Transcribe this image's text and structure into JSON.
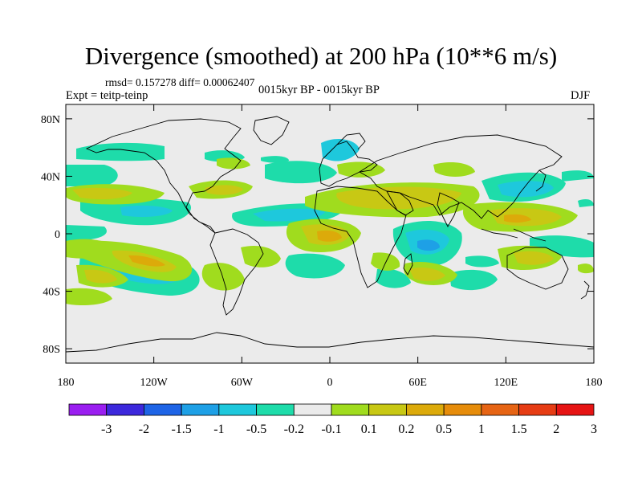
{
  "title": "Divergence (smoothed) at 200 hPa (10**6 m/s)",
  "stats_text": "rmsd= 0.157278 diff= 0.00062407",
  "experiment_text": "Expt = teitp-teinp",
  "period_text": "0015kyr BP - 0015kyr BP",
  "season_text": "DJF",
  "map": {
    "projection": "cylindrical equidistant",
    "background_color": "#ebebeb",
    "longitude_range": [
      -180,
      180
    ],
    "latitude_range": [
      -90,
      90
    ],
    "x_tick_labels": [
      "180",
      "120W",
      "60W",
      "0",
      "60E",
      "120E",
      "180"
    ],
    "y_tick_labels": [
      "80N",
      "40N",
      "0",
      "40S",
      "80S"
    ]
  },
  "colorbar": {
    "colors": [
      "#9a1ef0",
      "#3c28dc",
      "#1e64e6",
      "#1ea0e6",
      "#1ec8dc",
      "#1edcaa",
      "#ebebeb",
      "#a0dc1e",
      "#c8c814",
      "#dcaa0a",
      "#e68c0a",
      "#e66414",
      "#e63c14",
      "#e61414"
    ],
    "labels": [
      "-3",
      "-2",
      "-1.5",
      "-1",
      "-0.5",
      "-0.2",
      "-0.1",
      "0.1",
      "0.2",
      "0.5",
      "1",
      "1.5",
      "2",
      "3"
    ]
  }
}
